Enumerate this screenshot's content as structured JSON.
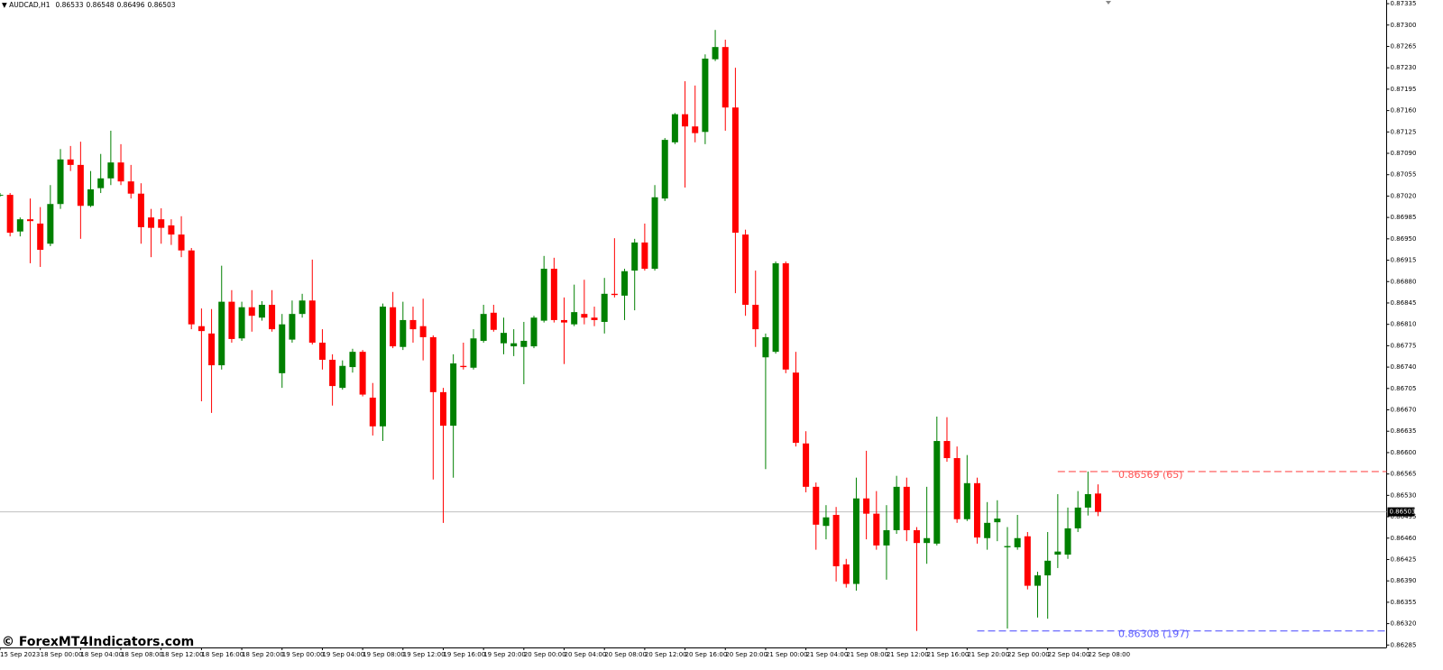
{
  "chart_data": {
    "type": "candlestick",
    "symbol": "AUDCAD,H1",
    "watermark": "© ForexMT4Indicators.com",
    "up_color": "#008000",
    "down_color": "#ff0000",
    "ylim": [
      0.86281,
      0.87341
    ],
    "yticks": [
      {
        "value": 0.87335,
        "label": "0.87335"
      },
      {
        "value": 0.873,
        "label": "0.87300"
      },
      {
        "value": 0.87265,
        "label": "0.87265"
      },
      {
        "value": 0.8723,
        "label": "0.87230"
      },
      {
        "value": 0.87195,
        "label": "0.87195"
      },
      {
        "value": 0.8716,
        "label": "0.87160"
      },
      {
        "value": 0.87125,
        "label": "0.87125"
      },
      {
        "value": 0.8709,
        "label": "0.87090"
      },
      {
        "value": 0.87055,
        "label": "0.87055"
      },
      {
        "value": 0.8702,
        "label": "0.87020"
      },
      {
        "value": 0.86985,
        "label": "0.86985"
      },
      {
        "value": 0.8695,
        "label": "0.86950"
      },
      {
        "value": 0.86915,
        "label": "0.86915"
      },
      {
        "value": 0.8688,
        "label": "0.86880"
      },
      {
        "value": 0.86845,
        "label": "0.86845"
      },
      {
        "value": 0.8681,
        "label": "0.86810"
      },
      {
        "value": 0.86775,
        "label": "0.86775"
      },
      {
        "value": 0.8674,
        "label": "0.86740"
      },
      {
        "value": 0.86705,
        "label": "0.86705"
      },
      {
        "value": 0.8667,
        "label": "0.86670"
      },
      {
        "value": 0.86635,
        "label": "0.86635"
      },
      {
        "value": 0.866,
        "label": "0.86600"
      },
      {
        "value": 0.86565,
        "label": "0.86565"
      },
      {
        "value": 0.8653,
        "label": "0.86530"
      },
      {
        "value": 0.86495,
        "label": "0.86495"
      },
      {
        "value": 0.8646,
        "label": "0.86460"
      },
      {
        "value": 0.86425,
        "label": "0.86425"
      },
      {
        "value": 0.8639,
        "label": "0.86390"
      },
      {
        "value": 0.86355,
        "label": "0.86355"
      },
      {
        "value": 0.8632,
        "label": "0.86320"
      },
      {
        "value": 0.86285,
        "label": "0.86285"
      }
    ],
    "annotations": [
      {
        "value": 0.86569,
        "label": "0.86569 (65)",
        "color": "#ff5050"
      },
      {
        "value": 0.86308,
        "label": "0.86308 (197)",
        "color": "#5a5aff"
      }
    ],
    "categories": [
      "15 Sep 2023",
      null,
      null,
      null,
      "18 Sep 00:00",
      null,
      null,
      null,
      "18 Sep 04:00",
      null,
      null,
      null,
      "18 Sep 08:00",
      null,
      null,
      null,
      "18 Sep 12:00",
      null,
      null,
      null,
      "18 Sep 16:00",
      null,
      null,
      null,
      "18 Sep 20:00",
      null,
      null,
      null,
      "19 Sep 00:00",
      null,
      null,
      null,
      "19 Sep 04:00",
      null,
      null,
      null,
      "19 Sep 08:00",
      null,
      null,
      null,
      "19 Sep 12:00",
      null,
      null,
      null,
      "19 Sep 16:00",
      null,
      null,
      null,
      "19 Sep 20:00",
      null,
      null,
      null,
      "20 Sep 00:00",
      null,
      null,
      null,
      "20 Sep 04:00",
      null,
      null,
      null,
      "20 Sep 08:00",
      null,
      null,
      null,
      "20 Sep 12:00",
      null,
      null,
      null,
      "20 Sep 16:00",
      null,
      null,
      null,
      "20 Sep 20:00",
      null,
      null,
      null,
      "21 Sep 00:00",
      null,
      null,
      null,
      "21 Sep 04:00",
      null,
      null,
      null,
      "21 Sep 08:00",
      null,
      null,
      null,
      "21 Sep 12:00",
      null,
      null,
      null,
      "21 Sep 16:00",
      null,
      null,
      null,
      "21 Sep 20:00",
      null,
      null,
      null,
      "22 Sep 00:00",
      null,
      null,
      null,
      "22 Sep 04:00",
      null,
      null,
      null,
      "22 Sep 08:00",
      null
    ],
    "open": [
      0.87022,
      0.87022,
      0.86962,
      0.86982,
      0.86975,
      0.86942,
      0.87007,
      0.8708,
      0.87071,
      0.87004,
      0.87033,
      0.87049,
      0.87075,
      0.87044,
      0.87024,
      0.86985,
      0.86982,
      0.86972,
      0.86957,
      0.86931,
      0.86807,
      0.86795,
      0.86743,
      0.86847,
      0.86787,
      0.86838,
      0.86821,
      0.86842,
      0.8673,
      0.86785,
      0.86827,
      0.86849,
      0.8678,
      0.86752,
      0.86706,
      0.8674,
      0.86765,
      0.8669,
      0.86643,
      0.86838,
      0.86773,
      0.86817,
      0.86807,
      0.86789,
      0.86699,
      0.86644,
      0.86742,
      0.86739,
      0.86783,
      0.86829,
      0.86779,
      0.86774,
      0.86773,
      0.86774,
      0.86816,
      0.86901,
      0.86817,
      0.8681,
      0.86827,
      0.86821,
      0.86814,
      0.8686,
      0.86857,
      0.86898,
      0.86944,
      0.86901,
      0.87016,
      0.87108,
      0.87154,
      0.87134,
      0.87125,
      0.87244,
      0.87264,
      0.87165,
      0.86957,
      0.86842,
      0.86756,
      0.86765,
      0.8691,
      0.86731,
      0.86615,
      0.86544,
      0.8648,
      0.86498,
      0.86417,
      0.86385,
      0.86525,
      0.865,
      0.86448,
      0.86473,
      0.86544,
      0.86473,
      0.86452,
      0.86451,
      0.86619,
      0.86591,
      0.86491,
      0.8655,
      0.8646,
      0.86486,
      0.86445,
      0.86445,
      0.86463,
      0.86382,
      0.86399,
      0.86433,
      0.86433,
      0.86476,
      0.8651,
      0.86533
    ],
    "high": [
      0.87025,
      0.87025,
      0.86985,
      0.87016,
      0.87002,
      0.87038,
      0.87097,
      0.87102,
      0.87109,
      0.87061,
      0.87089,
      0.87127,
      0.87105,
      0.87071,
      0.87041,
      0.86999,
      0.87,
      0.86982,
      0.86987,
      0.86935,
      0.86836,
      0.86835,
      0.86906,
      0.86866,
      0.86847,
      0.86866,
      0.86848,
      0.86866,
      0.86827,
      0.86849,
      0.8686,
      0.86916,
      0.86802,
      0.86761,
      0.86751,
      0.8677,
      0.86768,
      0.86714,
      0.86844,
      0.86863,
      0.86847,
      0.86839,
      0.86852,
      0.86792,
      0.86706,
      0.86761,
      0.8678,
      0.86802,
      0.86842,
      0.86842,
      0.86821,
      0.86802,
      0.86814,
      0.86824,
      0.86922,
      0.86919,
      0.86854,
      0.86875,
      0.86883,
      0.86839,
      0.86886,
      0.86951,
      0.86901,
      0.8695,
      0.86975,
      0.87038,
      0.87115,
      0.87156,
      0.87208,
      0.87201,
      0.87252,
      0.87292,
      0.87276,
      0.8723,
      0.86965,
      0.86898,
      0.86795,
      0.86913,
      0.86913,
      0.86765,
      0.86635,
      0.86551,
      0.86514,
      0.86511,
      0.86426,
      0.86559,
      0.86603,
      0.86537,
      0.86514,
      0.86562,
      0.86559,
      0.86478,
      0.86544,
      0.86659,
      0.86658,
      0.8661,
      0.86596,
      0.86559,
      0.86519,
      0.86522,
      0.86478,
      0.86498,
      0.8647,
      0.86405,
      0.8647,
      0.86532,
      0.8651,
      0.86537,
      0.86569,
      0.86548
    ],
    "low": [
      0.87019,
      0.86954,
      0.86954,
      0.8691,
      0.86904,
      0.86938,
      0.86999,
      0.87061,
      0.8695,
      0.87002,
      0.87025,
      0.87038,
      0.87038,
      0.87016,
      0.86942,
      0.8692,
      0.86942,
      0.8694,
      0.8692,
      0.86802,
      0.86684,
      0.86665,
      0.86736,
      0.8678,
      0.86783,
      0.86798,
      0.86816,
      0.86798,
      0.86706,
      0.8678,
      0.86821,
      0.86777,
      0.86736,
      0.86677,
      0.86703,
      0.86731,
      0.86692,
      0.86628,
      0.86619,
      0.86771,
      0.86768,
      0.8678,
      0.86751,
      0.86556,
      0.86485,
      0.86559,
      0.86736,
      0.86736,
      0.8678,
      0.86798,
      0.86761,
      0.86758,
      0.86712,
      0.86771,
      0.86813,
      0.86813,
      0.86745,
      0.86807,
      0.8681,
      0.86807,
      0.86795,
      0.86854,
      0.86817,
      0.86833,
      0.86898,
      0.86898,
      0.87012,
      0.87105,
      0.87034,
      0.87108,
      0.87105,
      0.87241,
      0.87127,
      0.86861,
      0.86824,
      0.86773,
      0.86573,
      0.86762,
      0.8673,
      0.8661,
      0.86535,
      0.86441,
      0.86458,
      0.86389,
      0.86379,
      0.86374,
      0.86458,
      0.86441,
      0.86392,
      0.86467,
      0.86455,
      0.86308,
      0.86418,
      0.86448,
      0.86585,
      0.86485,
      0.86488,
      0.86451,
      0.86441,
      0.86455,
      0.86312,
      0.86441,
      0.86376,
      0.8633,
      0.86328,
      0.86411,
      0.86426,
      0.8647,
      0.86497,
      0.86496
    ],
    "close": [
      0.87022,
      0.8696,
      0.86982,
      0.86979,
      0.86932,
      0.87007,
      0.8708,
      0.87071,
      0.87004,
      0.87031,
      0.87049,
      0.87075,
      0.87044,
      0.87024,
      0.86969,
      0.86968,
      0.86968,
      0.86957,
      0.86931,
      0.8681,
      0.86799,
      0.86743,
      0.86847,
      0.86786,
      0.86838,
      0.86824,
      0.86842,
      0.86802,
      0.8681,
      0.86827,
      0.86849,
      0.8678,
      0.86752,
      0.86709,
      0.86742,
      0.86765,
      0.86695,
      0.86643,
      0.86839,
      0.86774,
      0.86817,
      0.86802,
      0.86789,
      0.86699,
      0.86644,
      0.86746,
      0.8674,
      0.86787,
      0.86827,
      0.86801,
      0.86796,
      0.86779,
      0.86783,
      0.86821,
      0.86901,
      0.86817,
      0.86813,
      0.8683,
      0.86821,
      0.86817,
      0.8686,
      0.86858,
      0.86897,
      0.86944,
      0.86901,
      0.87018,
      0.87112,
      0.87154,
      0.87134,
      0.87123,
      0.87245,
      0.87264,
      0.87165,
      0.8696,
      0.86842,
      0.86802,
      0.86789,
      0.8691,
      0.86736,
      0.86616,
      0.86544,
      0.86482,
      0.86494,
      0.86414,
      0.86385,
      0.86525,
      0.865,
      0.86448,
      0.86473,
      0.86544,
      0.86473,
      0.86452,
      0.8646,
      0.86619,
      0.86591,
      0.86491,
      0.8655,
      0.86461,
      0.86485,
      0.86492,
      0.86447,
      0.8646,
      0.86382,
      0.86399,
      0.86423,
      0.86438,
      0.86476,
      0.8651,
      0.86532,
      0.86503
    ]
  }
}
